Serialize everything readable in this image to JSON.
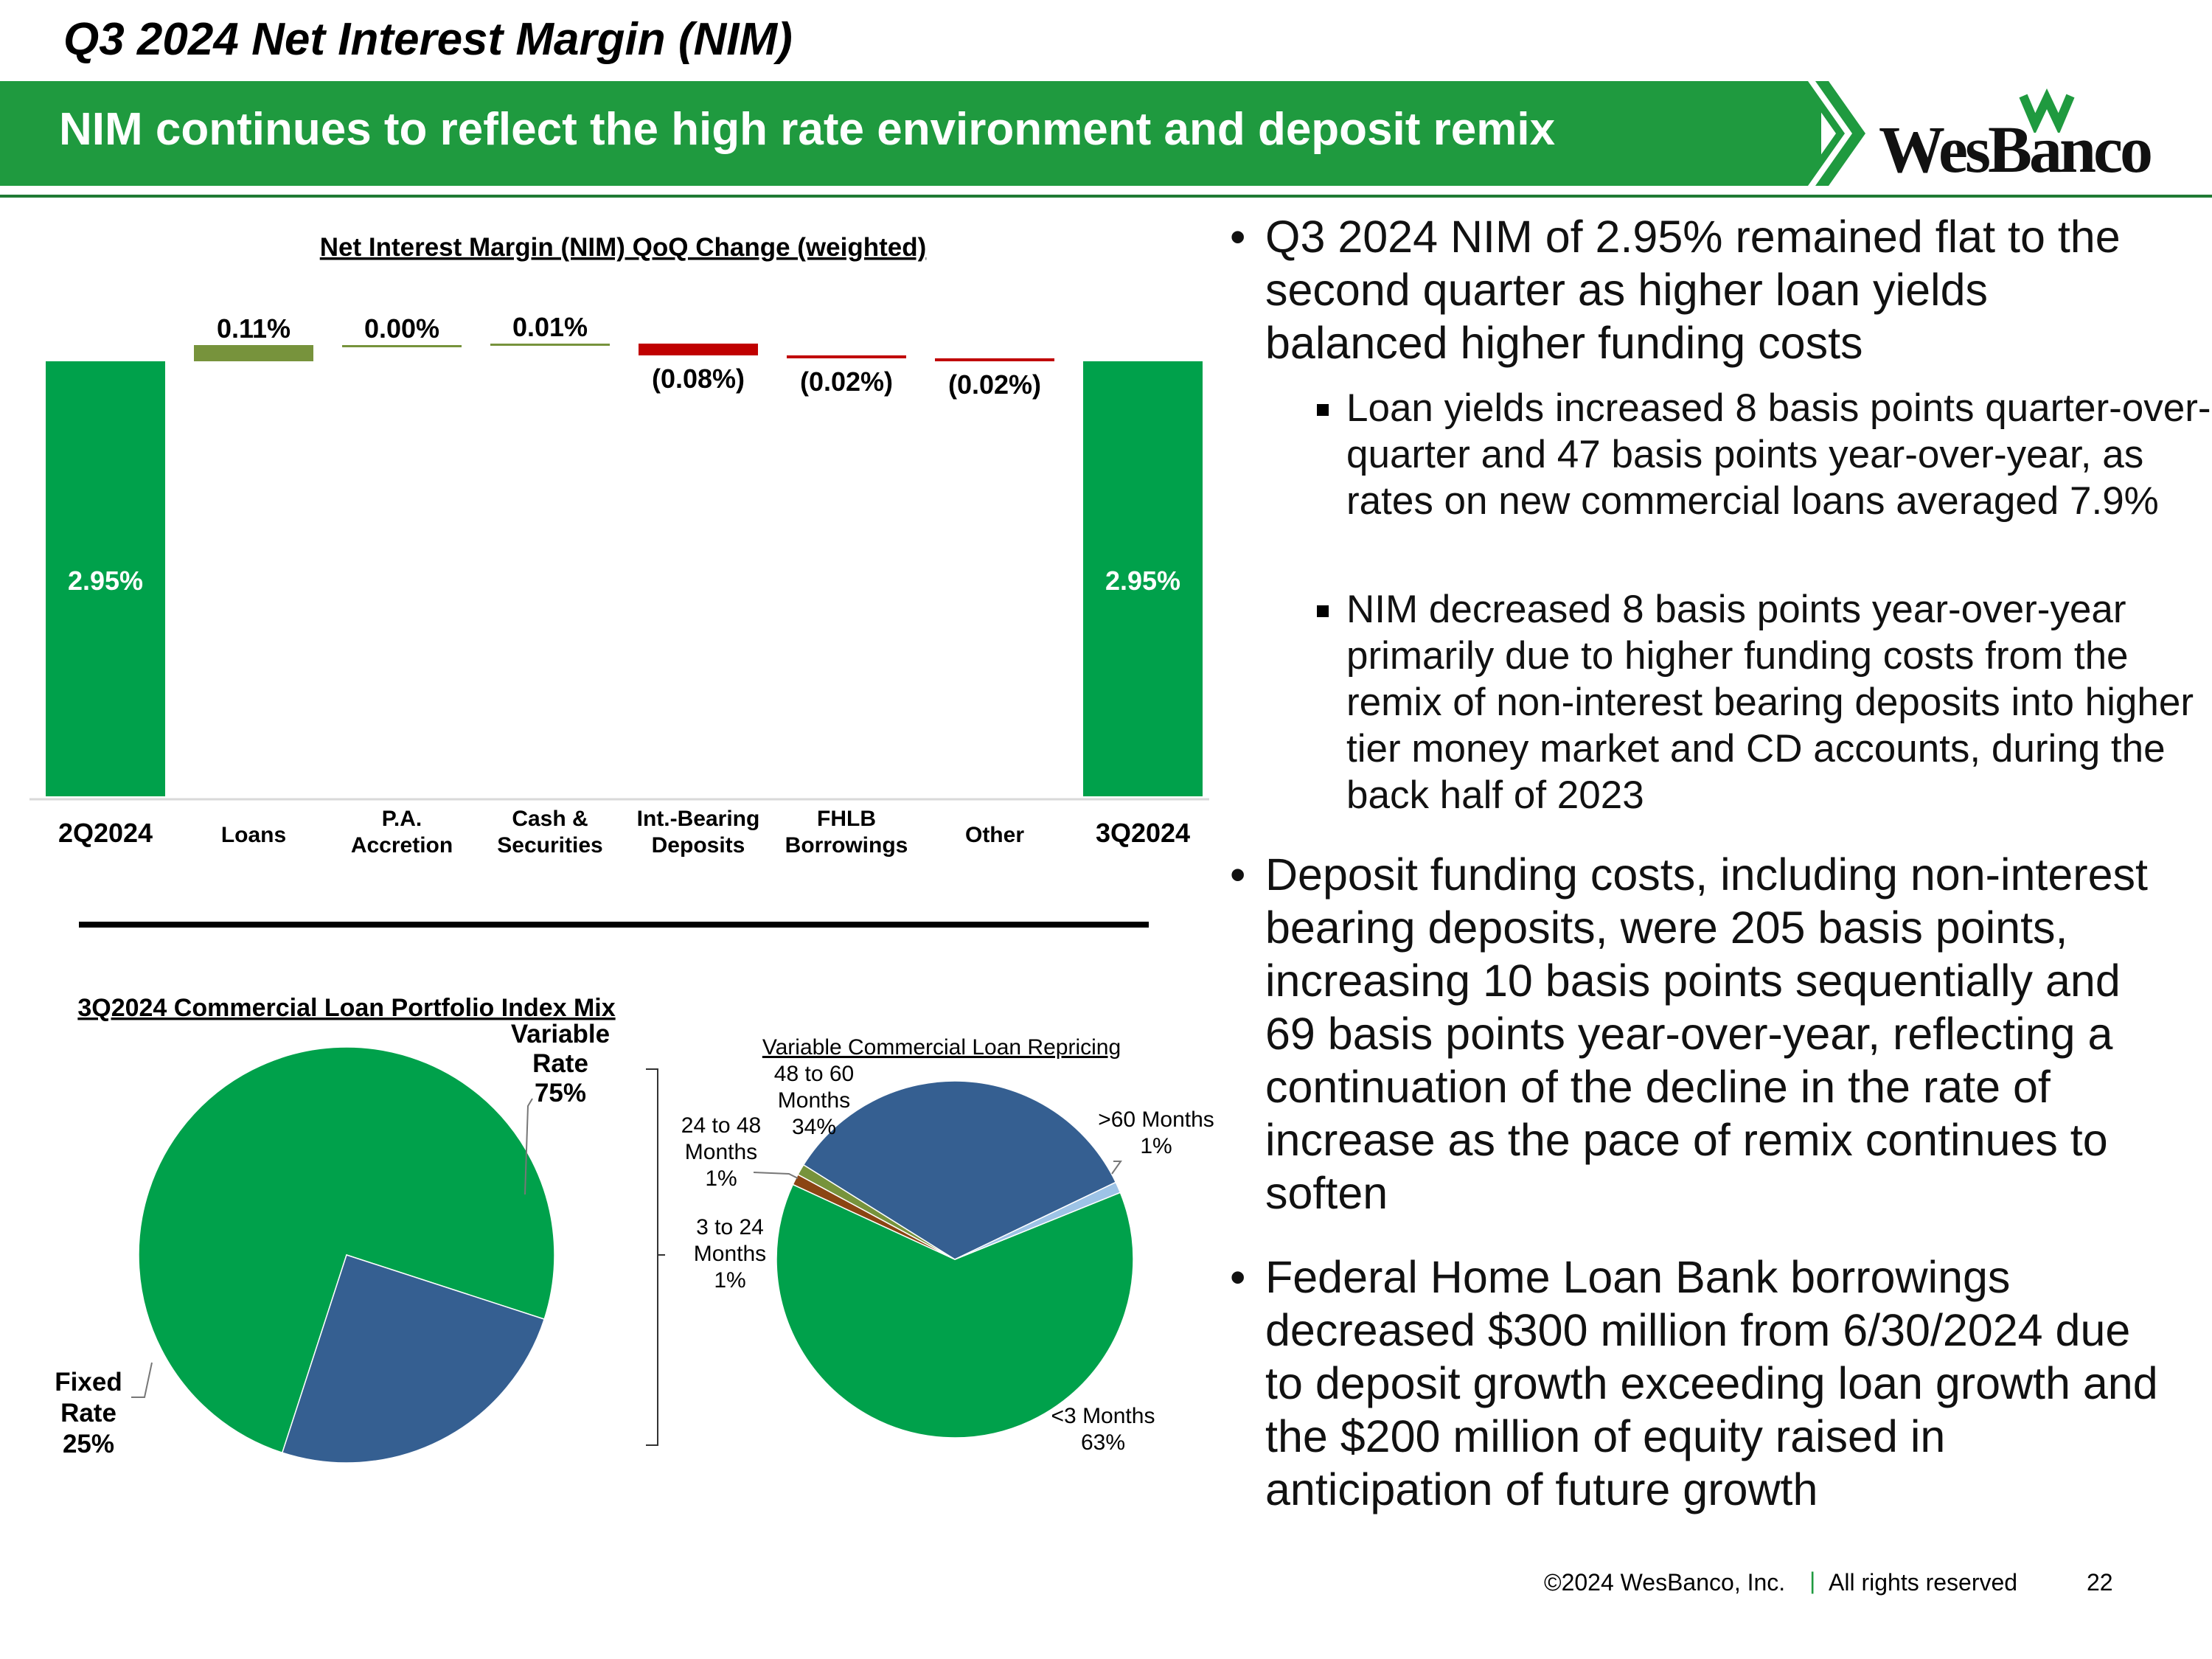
{
  "slide": {
    "title": "Q3 2024 Net Interest Margin (NIM)",
    "banner": "NIM continues to reflect the high rate environment and deposit remix",
    "logo_text": "WesBanco"
  },
  "bullets": [
    {
      "text": "Q3 2024 NIM of 2.95% remained flat to the second quarter as higher loan yields balanced higher funding costs",
      "subs": [
        "Loan yields increased 8 basis points quarter-over-quarter and 47 basis points year-over-year, as rates on new commercial loans averaged 7.9%",
        "NIM decreased 8 basis points year-over-year primarily due to higher funding costs from the remix of non-interest bearing deposits into higher tier money market and CD accounts, during the back half of 2023"
      ]
    },
    {
      "text": "Deposit funding costs, including non-interest bearing deposits, were 205 basis points, increasing 10 basis points sequentially and 69 basis points year-over-year, reflecting a continuation of the decline in the rate of increase as the pace of remix continues to soften",
      "subs": []
    },
    {
      "text": "Federal Home Loan Bank borrowings decreased $300 million from 6/30/2024 due to deposit growth exceeding loan growth and the $200 million of equity raised in anticipation of future growth",
      "subs": []
    }
  ],
  "footer": {
    "copyright": "©2024 WesBanco, Inc.",
    "separator": "|",
    "rights": "All rights reserved",
    "page": "22"
  },
  "colors": {
    "green": "#00a14b",
    "olive": "#77933c",
    "red": "#c00000",
    "blue": "#355f91",
    "light_blue": "#9dc3e6",
    "brown": "#8b4513"
  },
  "chart_data": [
    {
      "type": "bar",
      "subtype": "waterfall",
      "title": "Net Interest Margin (NIM) QoQ Change (weighted)",
      "categories": [
        [
          "2Q2024"
        ],
        [
          "Loans"
        ],
        [
          "P.A.",
          "Accretion"
        ],
        [
          "Cash &",
          "Securities"
        ],
        [
          "Int.-Bearing",
          "Deposits"
        ],
        [
          "FHLB",
          "Borrowings"
        ],
        [
          "Other"
        ],
        [
          "3Q2024"
        ]
      ],
      "values": [
        2.95,
        0.11,
        0.0,
        0.01,
        -0.08,
        -0.02,
        -0.02,
        2.95
      ],
      "labels": [
        "2.95%",
        "0.11%",
        "0.00%",
        "0.01%",
        "(0.08%)",
        "(0.02%)",
        "(0.02%)",
        "2.95%"
      ],
      "bar_kind": [
        "total",
        "delta",
        "delta",
        "delta",
        "delta",
        "delta",
        "delta",
        "total"
      ],
      "bar_colors": [
        "#00a14b",
        "#77933c",
        "#77933c",
        "#77933c",
        "#c00000",
        "#c00000",
        "#c00000",
        "#00a14b"
      ]
    },
    {
      "type": "pie",
      "title": "3Q2024 Commercial Loan Portfolio Index Mix",
      "slices": [
        {
          "label": [
            "Variable",
            "Rate",
            "75%"
          ],
          "value": 75,
          "color": "#00a14b"
        },
        {
          "label": [
            "Fixed",
            "Rate",
            "25%"
          ],
          "value": 25,
          "color": "#355f91"
        }
      ]
    },
    {
      "type": "pie",
      "title": "Variable Commercial Loan Repricing",
      "slices": [
        {
          "label": [
            "<3 Months",
            "63%"
          ],
          "value": 63,
          "color": "#00a14b"
        },
        {
          "label": [
            "3 to 24",
            "Months",
            "1%"
          ],
          "value": 1,
          "color": "#8b4513"
        },
        {
          "label": [
            "24 to 48",
            "Months",
            "1%"
          ],
          "value": 1,
          "color": "#77933c"
        },
        {
          "label": [
            "48 to 60",
            "Months",
            "34%"
          ],
          "value": 34,
          "color": "#355f91"
        },
        {
          "label": [
            ">60 Months",
            "1%"
          ],
          "value": 1,
          "color": "#9dc3e6"
        }
      ]
    }
  ]
}
